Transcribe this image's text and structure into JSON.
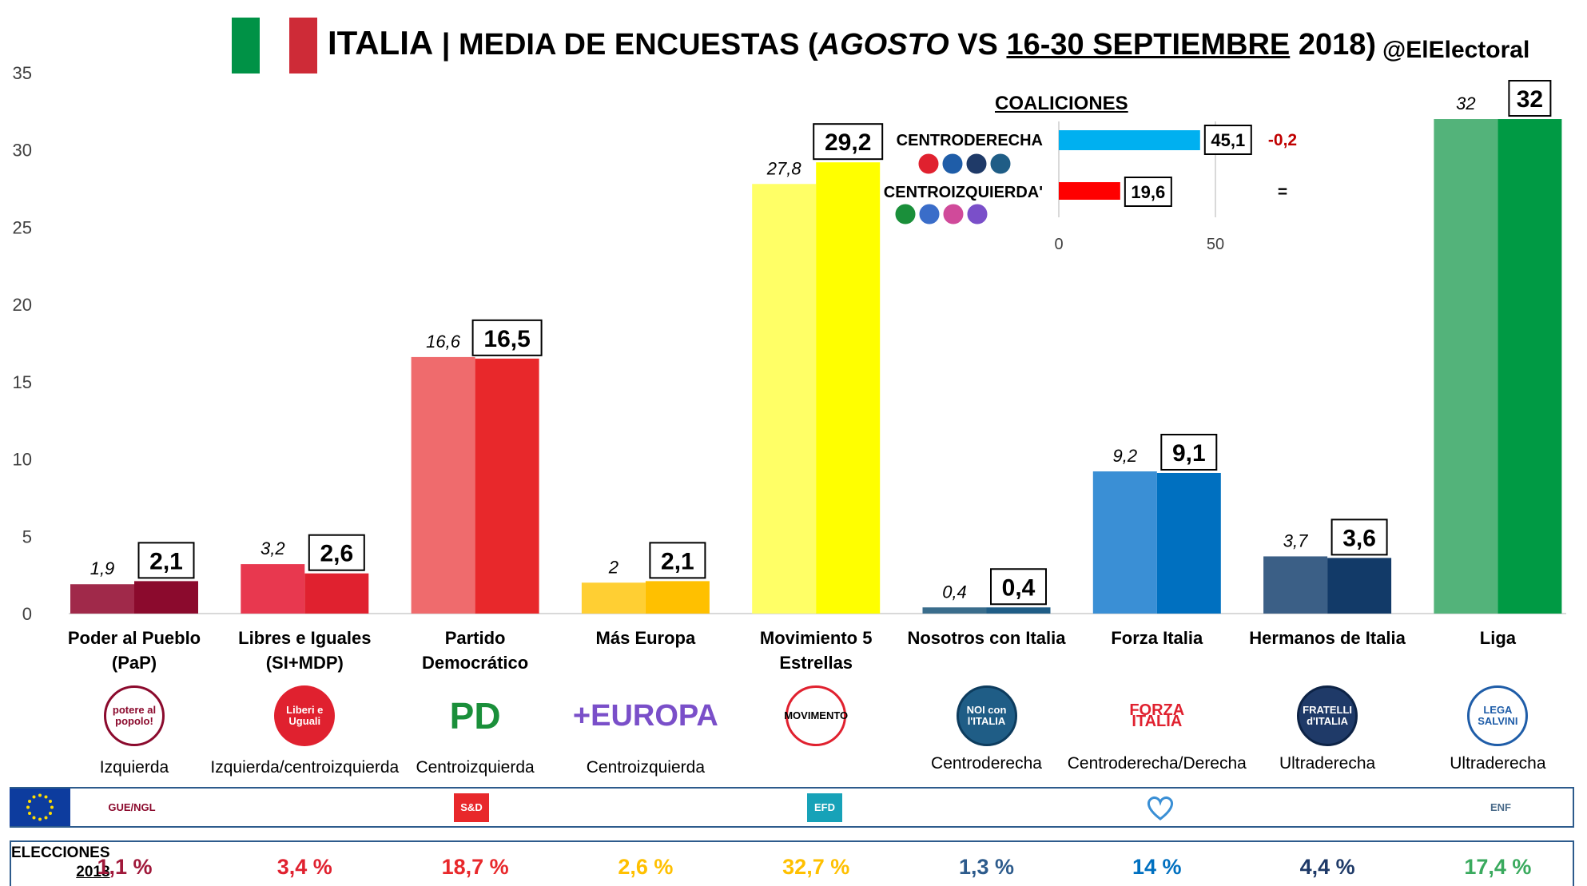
{
  "header": {
    "title_country": "ITALIA",
    "title_sep": " | ",
    "title_main": "MEDIA DE ENCUESTAS (",
    "title_agosto": "AGOSTO",
    "title_vs": " VS ",
    "title_range": "16-30 SEPTIEMBRE",
    "title_year": " 2018)",
    "handle": "@ElElectoral",
    "flag_colors": [
      "#009246",
      "#ce2b37"
    ]
  },
  "chart_data": [
    {
      "type": "bar",
      "title": "ITALIA | MEDIA DE ENCUESTAS (AGOSTO VS 16-30 SEPTIEMBRE 2018)",
      "categories": [
        "Poder al Pueblo (PaP)",
        "Libres e Iguales (SI+MDP)",
        "Partido Democrático",
        "Más Europa",
        "Movimiento 5 Estrellas",
        "Nosotros con Italia",
        "Forza Italia",
        "Hermanos de Italia",
        "Liga"
      ],
      "category_lines": [
        [
          "Poder al Pueblo",
          "(PaP)"
        ],
        [
          "Libres e Iguales",
          "(SI+MDP)"
        ],
        [
          "Partido",
          "Democrático"
        ],
        [
          "Más Europa"
        ],
        [
          "Movimiento 5",
          "Estrellas"
        ],
        [
          "Nosotros con Italia"
        ],
        [
          "Forza Italia"
        ],
        [
          "Hermanos de Italia"
        ],
        [
          "Liga"
        ]
      ],
      "series": [
        {
          "values": [
            1.9,
            3.2,
            16.6,
            2,
            27.8,
            0.4,
            9.2,
            3.7,
            32
          ],
          "labels": [
            "1,9",
            "3,2",
            "16,6",
            "2",
            "27,8",
            "0,4",
            "9,2",
            "3,7",
            "32"
          ]
        },
        {
          "values": [
            2.1,
            2.6,
            16.5,
            2.1,
            29.2,
            0.4,
            9.1,
            3.6,
            32
          ],
          "labels": [
            "2,1",
            "2,6",
            "16,5",
            "2,1",
            "29,2",
            "0,4",
            "9,1",
            "3,6",
            "32"
          ]
        }
      ],
      "colors_first": [
        "#a0294a",
        "#e8384f",
        "#ef6b6d",
        "#ffcf33",
        "#ffff66",
        "#3a6d8c",
        "#3a8fd5",
        "#3b5f86",
        "#53b37a"
      ],
      "colors_second": [
        "#8b0a2d",
        "#e0212f",
        "#e8282b",
        "#ffc000",
        "#ffff00",
        "#1f5d86",
        "#0070c0",
        "#123a68",
        "#009a44"
      ],
      "ylim": [
        0,
        35
      ],
      "yticks": [
        0,
        5,
        10,
        15,
        20,
        25,
        30,
        35
      ],
      "grid": false
    },
    {
      "type": "bar",
      "orientation": "horizontal",
      "title": "COALICIONES",
      "categories": [
        "CENTRODERECHA",
        "CENTROIZQUIERDA'"
      ],
      "values": [
        45.1,
        19.6
      ],
      "labels": [
        "45,1",
        "19,6"
      ],
      "changes": [
        "-0,2",
        "="
      ],
      "colors": [
        "#00b0f0",
        "#ff0000"
      ],
      "xlim": [
        0,
        50
      ],
      "xticks": [
        0,
        50
      ]
    }
  ],
  "ideology": [
    "Izquierda",
    "Izquierda/centroizquierda",
    "Centroizquierda",
    "Centroizquierda",
    "",
    "Centroderecha",
    "Centroderecha/Derecha",
    "Ultraderecha",
    "Ultraderecha"
  ],
  "logos": [
    {
      "icon": "potere-al-popolo-logo",
      "text": "potere al popolo!"
    },
    {
      "icon": "liberi-e-uguali-logo",
      "text": "Liberi e Uguali"
    },
    {
      "icon": "pd-logo",
      "text": "PD"
    },
    {
      "icon": "piu-europa-logo",
      "text": "+EUROPA"
    },
    {
      "icon": "m5s-logo",
      "text": "MOVIMENTO"
    },
    {
      "icon": "noi-con-italia-logo",
      "text": "NOI con l'ITALIA"
    },
    {
      "icon": "forza-italia-logo",
      "text": "FORZA ITALIA"
    },
    {
      "icon": "fratelli-italia-logo",
      "text": "FRATELLI d'ITALIA"
    },
    {
      "icon": "lega-logo",
      "text": "LEGA SALVINI"
    }
  ],
  "eu_groups": [
    {
      "icon": "gue-ngl-logo",
      "text": "GUE/NGL",
      "color": "#8b0a2d"
    },
    {
      "icon": "s-and-d-logo",
      "text": "S&D",
      "color": "#e8282b"
    },
    {
      "icon": "efd-logo",
      "text": "EFD",
      "color": "#17a2b8"
    },
    {
      "icon": "epp-heart-logo",
      "text": "",
      "color": "#3a8fd5"
    },
    {
      "icon": "enf-logo",
      "text": "ENF",
      "color": "#4a6b8a"
    }
  ],
  "elections": {
    "label_line1": "ELECCIONES",
    "label_line2": "2018",
    "values": [
      "1,1 %",
      "3,4 %",
      "18,7 %",
      "2,6 %",
      "32,7 %",
      "1,3 %",
      "14 %",
      "4,4 %",
      "17,4 %"
    ],
    "colors": [
      "#a0183a",
      "#e0212f",
      "#e8282b",
      "#ffc000",
      "#ffc000",
      "#2d5b8c",
      "#0070c0",
      "#1f3a68",
      "#3aaa5e"
    ]
  }
}
